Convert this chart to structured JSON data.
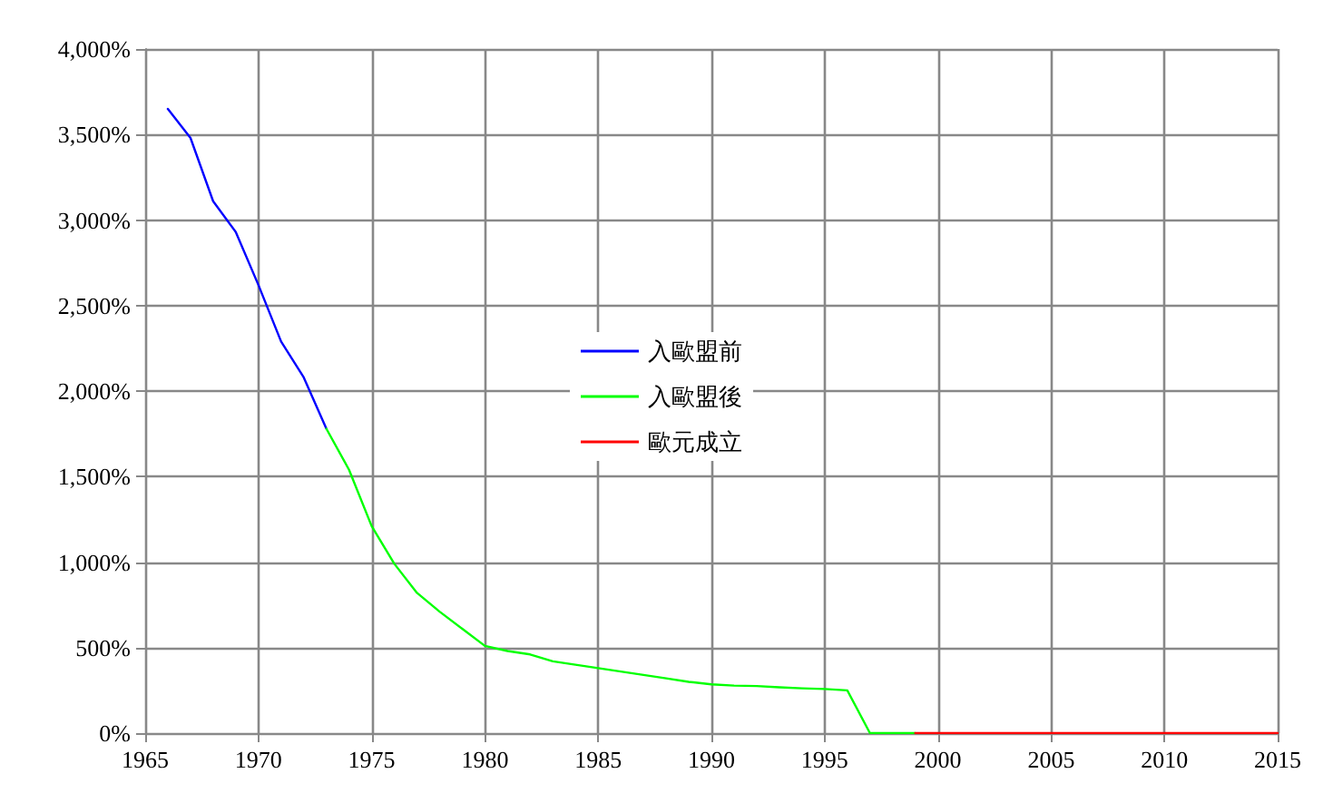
{
  "chart_data": {
    "type": "line",
    "xlim": [
      1965,
      2015
    ],
    "xticks": [
      1965,
      1970,
      1975,
      1980,
      1985,
      1990,
      1995,
      2000,
      2005,
      2010,
      2015
    ],
    "ylim": [
      0,
      4000
    ],
    "yticks": [
      {
        "value": 0,
        "label": "0%"
      },
      {
        "value": 500,
        "label": "500%"
      },
      {
        "value": 1000,
        "label": "1,000%"
      },
      {
        "value": 1500,
        "label": "1,500%"
      },
      {
        "value": 2000,
        "label": "2,000%"
      },
      {
        "value": 2500,
        "label": "2,500%"
      },
      {
        "value": 3000,
        "label": "3,000%"
      },
      {
        "value": 3500,
        "label": "3,500%"
      },
      {
        "value": 4000,
        "label": "4,000%"
      }
    ],
    "grid": true,
    "legend": "center",
    "marker": "none",
    "line_style": "solid",
    "series": [
      {
        "name": "入歐盟前",
        "color": "#0000ff",
        "x": [
          1966,
          1967,
          1968,
          1969,
          1970,
          1971,
          1972,
          1973
        ],
        "values": [
          3650,
          3480,
          3110,
          2930,
          2620,
          2290,
          2080,
          1780
        ]
      },
      {
        "name": "入歐盟後",
        "color": "#00ff00",
        "x": [
          1973,
          1974,
          1975,
          1976,
          1977,
          1978,
          1979,
          1980,
          1981,
          1982,
          1983,
          1984,
          1985,
          1986,
          1987,
          1988,
          1989,
          1990,
          1991,
          1992,
          1993,
          1994,
          1995,
          1996,
          1997,
          1998,
          1999
        ],
        "values": [
          1780,
          1540,
          1210,
          990,
          820,
          710,
          610,
          510,
          480,
          460,
          420,
          400,
          380,
          360,
          340,
          320,
          300,
          285,
          278,
          275,
          268,
          262,
          258,
          250,
          0,
          0,
          0
        ]
      },
      {
        "name": "歐元成立",
        "color": "#ff0000",
        "x": [
          1999,
          2015
        ],
        "values": [
          0,
          0
        ]
      }
    ]
  }
}
